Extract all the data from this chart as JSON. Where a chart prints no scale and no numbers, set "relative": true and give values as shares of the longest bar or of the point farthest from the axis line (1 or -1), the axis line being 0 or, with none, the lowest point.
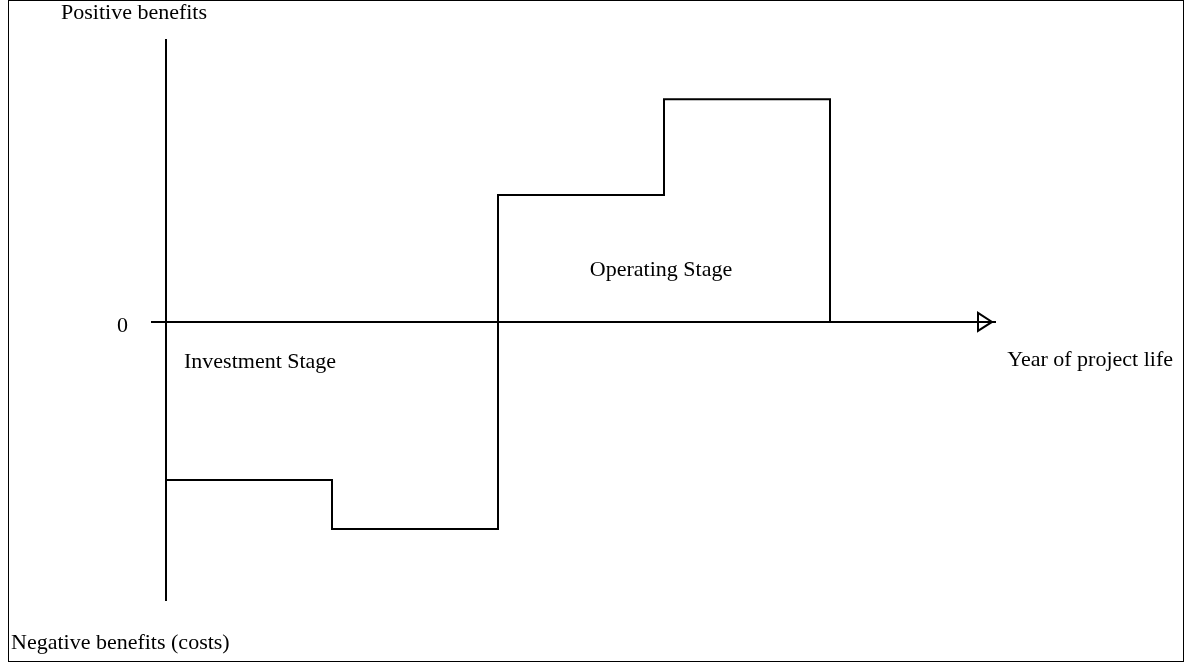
{
  "chart_data": {
    "type": "step",
    "relative": true,
    "ylabel": "Positive benefits",
    "categories": [
      null,
      null,
      null,
      null,
      null,
      null
    ],
    "series": [
      {
        "color": "#000000",
        "values": [
          -0.57,
          -0.71,
          -0.93,
          0.57,
          1,
          0
        ]
      }
    ],
    "annotations": [
      "0",
      "Investment Stage",
      "Operating Stage",
      "Negative benefits (costs)",
      "Year of project life"
    ],
    "legend": false
  }
}
